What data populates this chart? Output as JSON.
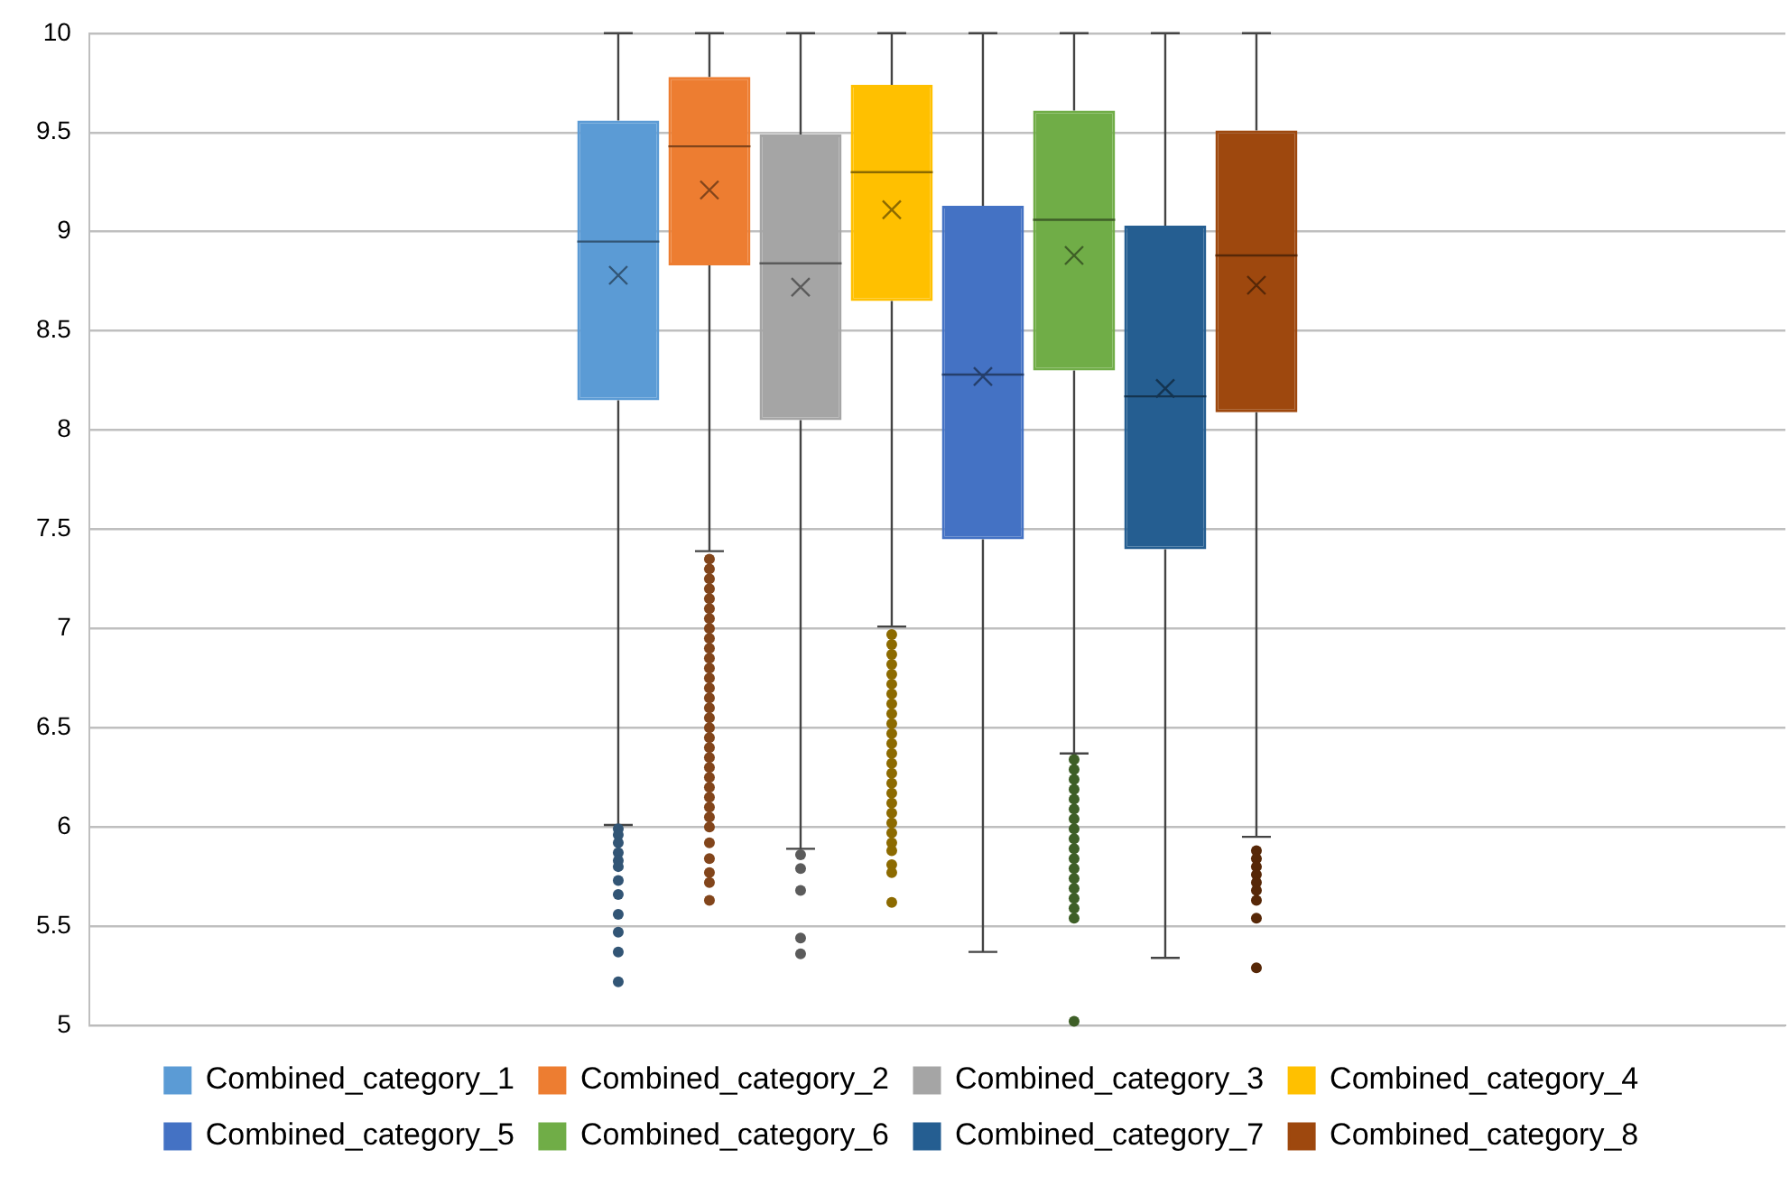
{
  "chart_data": {
    "type": "box",
    "categories": [
      null
    ],
    "ylim": [
      5,
      10
    ],
    "yticks": [
      5,
      5.5,
      6,
      6.5,
      7,
      7.5,
      8,
      8.5,
      9,
      9.5,
      10
    ],
    "grid": "y",
    "legend": "bottom",
    "series": [
      {
        "name": "Combined_category_1",
        "color": "#5b9bd5",
        "boxes": [
          {
            "low": 6.01,
            "q1": 8.15,
            "median": 8.95,
            "q3": 9.56,
            "high": 10,
            "mean": 8.78,
            "outliers": [
              5.99,
              5.96,
              5.92,
              5.87,
              5.83,
              5.8,
              5.73,
              5.66,
              5.56,
              5.47,
              5.37,
              5.22
            ]
          }
        ]
      },
      {
        "name": "Combined_category_2",
        "color": "#ed7d31",
        "boxes": [
          {
            "low": 7.39,
            "q1": 8.83,
            "median": 9.43,
            "q3": 9.78,
            "high": 10,
            "mean": 9.21,
            "outliers": [
              7.35,
              7.3,
              7.25,
              7.2,
              7.15,
              7.1,
              7.05,
              7.0,
              6.95,
              6.9,
              6.85,
              6.8,
              6.75,
              6.7,
              6.65,
              6.6,
              6.55,
              6.5,
              6.45,
              6.4,
              6.35,
              6.3,
              6.25,
              6.2,
              6.15,
              6.1,
              6.05,
              6.0,
              5.92,
              5.84,
              5.77,
              5.72,
              5.63
            ]
          }
        ]
      },
      {
        "name": "Combined_category_3",
        "color": "#a5a5a5",
        "boxes": [
          {
            "low": 5.89,
            "q1": 8.05,
            "median": 8.84,
            "q3": 9.49,
            "high": 10,
            "mean": 8.72,
            "outliers": [
              5.86,
              5.79,
              5.68,
              5.44,
              5.36
            ]
          }
        ]
      },
      {
        "name": "Combined_category_4",
        "color": "#ffc000",
        "boxes": [
          {
            "low": 7.01,
            "q1": 8.65,
            "median": 9.3,
            "q3": 9.74,
            "high": 10,
            "mean": 9.11,
            "outliers": [
              6.97,
              6.92,
              6.87,
              6.82,
              6.77,
              6.72,
              6.67,
              6.62,
              6.57,
              6.52,
              6.47,
              6.42,
              6.37,
              6.32,
              6.27,
              6.22,
              6.17,
              6.12,
              6.07,
              6.02,
              5.97,
              5.92,
              5.88,
              5.81,
              5.77,
              5.62
            ]
          }
        ]
      },
      {
        "name": "Combined_category_5",
        "color": "#4472c4",
        "boxes": [
          {
            "low": 5.37,
            "q1": 7.45,
            "median": 8.28,
            "q3": 9.13,
            "high": 10,
            "mean": 8.27
          }
        ]
      },
      {
        "name": "Combined_category_6",
        "color": "#70ad47",
        "boxes": [
          {
            "low": 6.37,
            "q1": 8.3,
            "median": 9.06,
            "q3": 9.61,
            "high": 10,
            "mean": 8.88,
            "outliers": [
              6.34,
              6.29,
              6.24,
              6.19,
              6.14,
              6.09,
              6.04,
              5.99,
              5.94,
              5.89,
              5.84,
              5.79,
              5.74,
              5.69,
              5.64,
              5.59,
              5.54,
              5.02
            ]
          }
        ]
      },
      {
        "name": "Combined_category_7",
        "color": "#255e91",
        "boxes": [
          {
            "low": 5.34,
            "q1": 7.4,
            "median": 8.17,
            "q3": 9.03,
            "high": 10,
            "mean": 8.21
          }
        ]
      },
      {
        "name": "Combined_category_8",
        "color": "#9e480e",
        "boxes": [
          {
            "low": 5.95,
            "q1": 8.09,
            "median": 8.88,
            "q3": 9.51,
            "high": 10,
            "mean": 8.73,
            "outliers": [
              5.88,
              5.84,
              5.8,
              5.76,
              5.72,
              5.68,
              5.63,
              5.54,
              5.29
            ]
          }
        ]
      }
    ]
  }
}
